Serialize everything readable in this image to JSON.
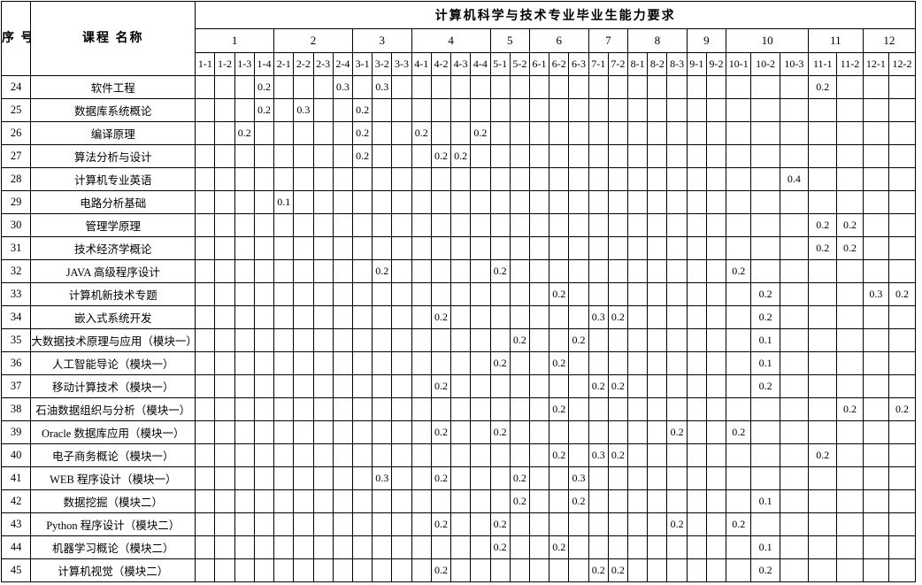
{
  "table": {
    "title": "计算机科学与技术专业毕业生能力要求",
    "corner_no": "序\n号",
    "corner_course": "课程\n名称",
    "groups": [
      {
        "label": "1",
        "subs": [
          "1-1",
          "1-2",
          "1-3",
          "1-4"
        ]
      },
      {
        "label": "2",
        "subs": [
          "2-1",
          "2-2",
          "2-3",
          "2-4"
        ]
      },
      {
        "label": "3",
        "subs": [
          "3-1",
          "3-2",
          "3-3"
        ]
      },
      {
        "label": "4",
        "subs": [
          "4-1",
          "4-2",
          "4-3",
          "4-4"
        ]
      },
      {
        "label": "5",
        "subs": [
          "5-1",
          "5-2"
        ]
      },
      {
        "label": "6",
        "subs": [
          "6-1",
          "6-2",
          "6-3"
        ]
      },
      {
        "label": "7",
        "subs": [
          "7-1",
          "7-2"
        ]
      },
      {
        "label": "8",
        "subs": [
          "8-1",
          "8-2",
          "8-3"
        ]
      },
      {
        "label": "9",
        "subs": [
          "9-1",
          "9-2"
        ]
      },
      {
        "label": "10",
        "subs": [
          "10-1",
          "10-2",
          "10-3"
        ]
      },
      {
        "label": "11",
        "subs": [
          "11-1",
          "11-2"
        ]
      },
      {
        "label": "12",
        "subs": [
          "12-1",
          "12-2"
        ]
      }
    ],
    "rows": [
      {
        "no": "24",
        "name": "软件工程",
        "values": {
          "1-4": "0.2",
          "2-4": "0.3",
          "3-2": "0.3",
          "11-1": "0.2"
        }
      },
      {
        "no": "25",
        "name": "数据库系统概论",
        "values": {
          "1-4": "0.2",
          "2-2": "0.3",
          "3-1": "0.2"
        }
      },
      {
        "no": "26",
        "name": "编译原理",
        "values": {
          "1-3": "0.2",
          "3-1": "0.2",
          "4-1": "0.2",
          "4-4": "0.2"
        }
      },
      {
        "no": "27",
        "name": "算法分析与设计",
        "values": {
          "3-1": "0.2",
          "4-2": "0.2",
          "4-3": "0.2"
        }
      },
      {
        "no": "28",
        "name": "计算机专业英语",
        "values": {
          "10-3": "0.4"
        }
      },
      {
        "no": "29",
        "name": "电路分析基础",
        "values": {
          "2-1": "0.1"
        }
      },
      {
        "no": "30",
        "name": "管理学原理",
        "values": {
          "11-1": "0.2",
          "11-2": "0.2"
        }
      },
      {
        "no": "31",
        "name": "技术经济学概论",
        "values": {
          "11-1": "0.2",
          "11-2": "0.2"
        }
      },
      {
        "no": "32",
        "name": "JAVA 高级程序设计",
        "values": {
          "3-2": "0.2",
          "5-1": "0.2",
          "10-1": "0.2"
        }
      },
      {
        "no": "33",
        "name": "计算机新技术专题",
        "values": {
          "6-2": "0.2",
          "10-2": "0.2",
          "12-1": "0.3",
          "12-2": "0.2"
        }
      },
      {
        "no": "34",
        "name": "嵌入式系统开发",
        "values": {
          "4-2": "0.2",
          "7-1": "0.3",
          "7-2": "0.2",
          "10-2": "0.2"
        }
      },
      {
        "no": "35",
        "name": "大数据技术原理与应用（模块一）",
        "values": {
          "5-2": "0.2",
          "6-3": "0.2",
          "10-2": "0.1"
        }
      },
      {
        "no": "36",
        "name": "人工智能导论（模块一）",
        "values": {
          "5-1": "0.2",
          "6-2": "0.2",
          "10-2": "0.1"
        }
      },
      {
        "no": "37",
        "name": "移动计算技术（模块一）",
        "values": {
          "4-2": "0.2",
          "7-1": "0.2",
          "7-2": "0.2",
          "10-2": "0.2"
        }
      },
      {
        "no": "38",
        "name": "石油数据组织与分析（模块一）",
        "values": {
          "6-2": "0.2",
          "11-2": "0.2",
          "12-2": "0.2"
        }
      },
      {
        "no": "39",
        "name": "Oracle 数据库应用（模块一）",
        "values": {
          "4-2": "0.2",
          "5-1": "0.2",
          "8-3": "0.2",
          "10-1": "0.2"
        }
      },
      {
        "no": "40",
        "name": "电子商务概论（模块一）",
        "values": {
          "6-2": "0.2",
          "7-1": "0.3",
          "7-2": "0.2",
          "11-1": "0.2"
        }
      },
      {
        "no": "41",
        "name": "WEB 程序设计（模块一）",
        "values": {
          "3-2": "0.3",
          "4-2": "0.2",
          "5-2": "0.2",
          "6-3": "0.3"
        }
      },
      {
        "no": "42",
        "name": "数据挖掘（模块二）",
        "values": {
          "5-2": "0.2",
          "6-3": "0.2",
          "10-2": "0.1"
        }
      },
      {
        "no": "43",
        "name": "Python 程序设计（模块二）",
        "values": {
          "4-2": "0.2",
          "5-1": "0.2",
          "8-3": "0.2",
          "10-1": "0.2"
        }
      },
      {
        "no": "44",
        "name": "机器学习概论（模块二）",
        "values": {
          "5-1": "0.2",
          "6-2": "0.2",
          "10-2": "0.1"
        }
      },
      {
        "no": "45",
        "name": "计算机视觉（模块二）",
        "values": {
          "4-2": "0.2",
          "7-1": "0.2",
          "7-2": "0.2",
          "10-2": "0.2"
        }
      }
    ]
  }
}
